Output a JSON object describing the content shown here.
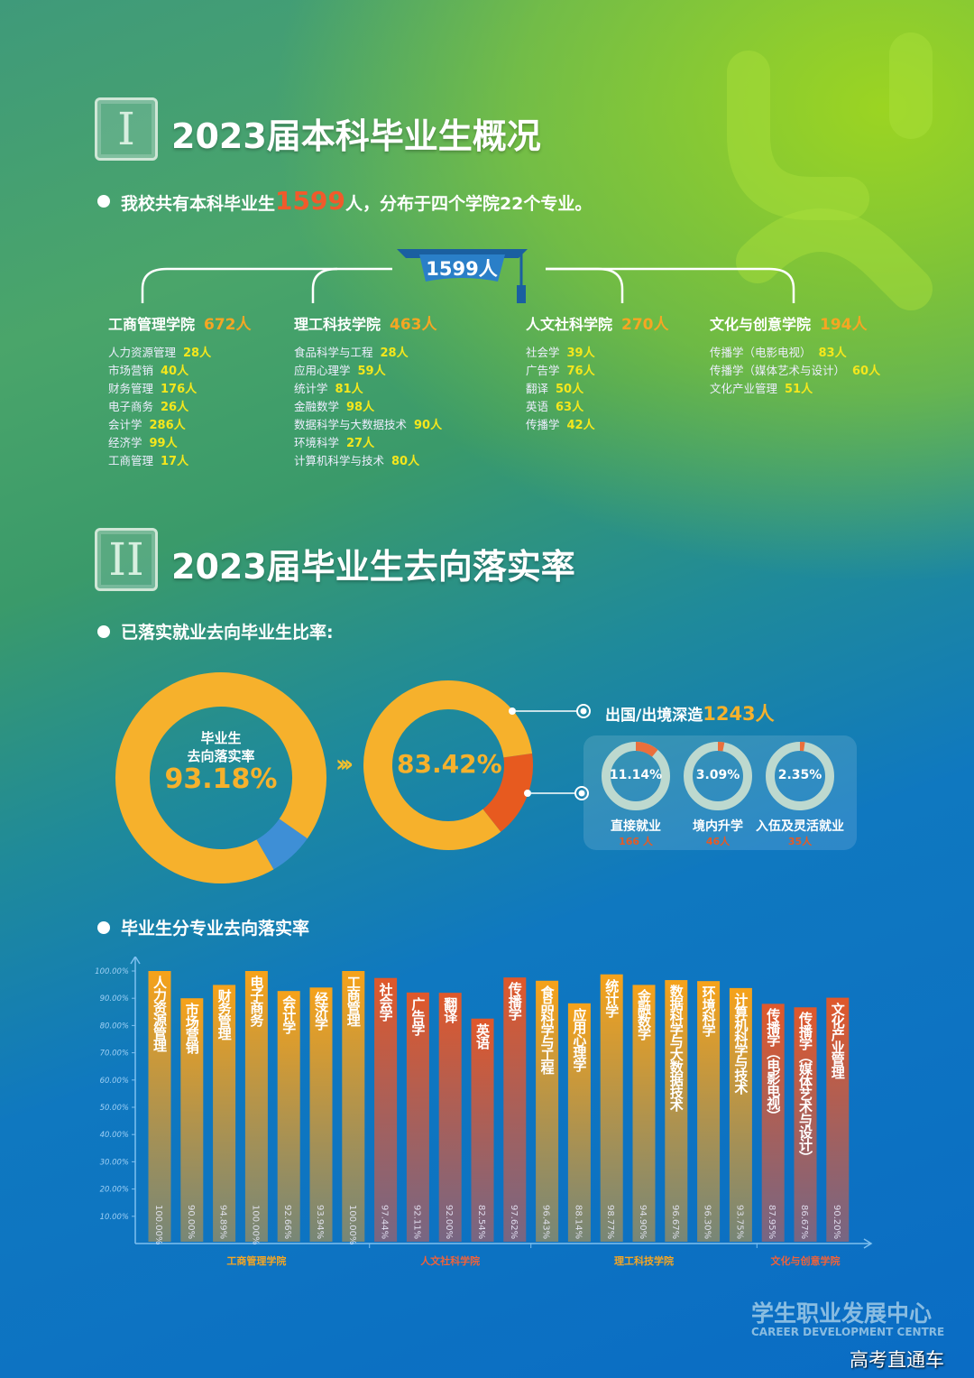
{
  "section1": {
    "numeral": "I",
    "title": "2023届本科毕业生概况",
    "intro_pre": "我校共有本科毕业生",
    "intro_num": "1599",
    "intro_post": "人，分布于四个学院22个专业。",
    "total_badge": "1599人",
    "colleges": [
      {
        "name": "工商管理学院",
        "count": "672人",
        "majors": [
          [
            "人力资源管理",
            "28人"
          ],
          [
            "市场营销",
            "40人"
          ],
          [
            "财务管理",
            "176人"
          ],
          [
            "电子商务",
            "26人"
          ],
          [
            "会计学",
            "286人"
          ],
          [
            "经济学",
            "99人"
          ],
          [
            "工商管理",
            "17人"
          ]
        ]
      },
      {
        "name": "理工科技学院",
        "count": "463人",
        "majors": [
          [
            "食品科学与工程",
            "28人"
          ],
          [
            "应用心理学",
            "59人"
          ],
          [
            "统计学",
            "81人"
          ],
          [
            "金融数学",
            "98人"
          ],
          [
            "数据科学与大数据技术",
            "90人"
          ],
          [
            "环境科学",
            "27人"
          ],
          [
            "计算机科学与技术",
            "80人"
          ]
        ]
      },
      {
        "name": "人文社科学院",
        "count": "270人",
        "majors": [
          [
            "社会学",
            "39人"
          ],
          [
            "广告学",
            "76人"
          ],
          [
            "翻译",
            "50人"
          ],
          [
            "英语",
            "63人"
          ],
          [
            "传播学",
            "42人"
          ]
        ]
      },
      {
        "name": "文化与创意学院",
        "count": "194人",
        "majors": [
          [
            "传播学（电影电视）",
            "83人"
          ],
          [
            "传播学（媒体艺术与设计）",
            "60人"
          ],
          [
            "文化产业管理",
            "51人"
          ]
        ]
      }
    ]
  },
  "section2": {
    "numeral": "II",
    "title": "2023届毕业生去向落实率",
    "sub1": "已落实就业去向毕业生比率:",
    "donut1": {
      "label1": "毕业生",
      "label2": "去向落实率",
      "value": "93.18%",
      "pct": 93.18
    },
    "arrows": "›››",
    "donut2": {
      "value": "83.42%",
      "pct": 83.42
    },
    "abroad": {
      "label": "出国/出境深造",
      "count": "1243人"
    },
    "small": [
      {
        "value": "11.14%",
        "pct": 11.14,
        "label": "直接就业",
        "count": "166 人"
      },
      {
        "value": "3.09%",
        "pct": 3.09,
        "label": "境内升学",
        "count": "46人"
      },
      {
        "value": "2.35%",
        "pct": 2.35,
        "label": "入伍及灵活就业",
        "count": "35人"
      }
    ],
    "sub2": "毕业生分专业去向落实率"
  },
  "colors": {
    "orange": "#f6b12c",
    "red": "#e75a1f",
    "blue_seg": "#3e8fd6",
    "yellow": "#f5e71c"
  },
  "chart_data": {
    "type": "bar",
    "ylim": [
      0,
      100
    ],
    "yticks": [
      "10.00%",
      "20.00%",
      "30.00%",
      "40.00%",
      "50.00%",
      "60.00%",
      "70.00%",
      "80.00%",
      "90.00%",
      "100.00%"
    ],
    "categories": [
      "人力资源管理",
      "市场营销",
      "财务管理",
      "电子商务",
      "会计学",
      "经济学",
      "工商管理",
      "社会学",
      "广告学",
      "翻译",
      "英语",
      "传播学",
      "食品科学与工程",
      "应用心理学",
      "统计学",
      "金融数学",
      "数据科学与大数据技术",
      "环境科学",
      "计算机科学与技术",
      "传播学（电影电视）",
      "传播学（媒体艺术与设计）",
      "文化产业管理"
    ],
    "values": [
      100.0,
      90.0,
      94.89,
      100.0,
      92.66,
      93.94,
      100.0,
      97.44,
      92.11,
      92.0,
      82.54,
      97.62,
      96.43,
      88.14,
      98.77,
      94.9,
      96.67,
      96.3,
      93.75,
      87.95,
      86.67,
      90.2
    ],
    "value_labels": [
      "100.00%",
      "90.00%",
      "94.89%",
      "100.00%",
      "92.66%",
      "93.94%",
      "100.00%",
      "97.44%",
      "92.11%",
      "92.00%",
      "82.54%",
      "97.62%",
      "96.43%",
      "88.14%",
      "98.77%",
      "94.90%",
      "96.67%",
      "96.30%",
      "93.75%",
      "87.95%",
      "86.67%",
      "90.20%"
    ],
    "groups": [
      {
        "name": "工商管理学院",
        "count": 7,
        "color": "#f6a21a"
      },
      {
        "name": "人文社科学院",
        "count": 5,
        "color": "#e0582a"
      },
      {
        "name": "理工科技学院",
        "count": 7,
        "color": "#f6a21a"
      },
      {
        "name": "文化与创意学院",
        "count": 3,
        "color": "#e0582a"
      }
    ]
  },
  "footer": {
    "org": "学生职业发展中心",
    "org_en": "CAREER DEVELOPMENT CENTRE",
    "watermark": "高考直通车"
  }
}
